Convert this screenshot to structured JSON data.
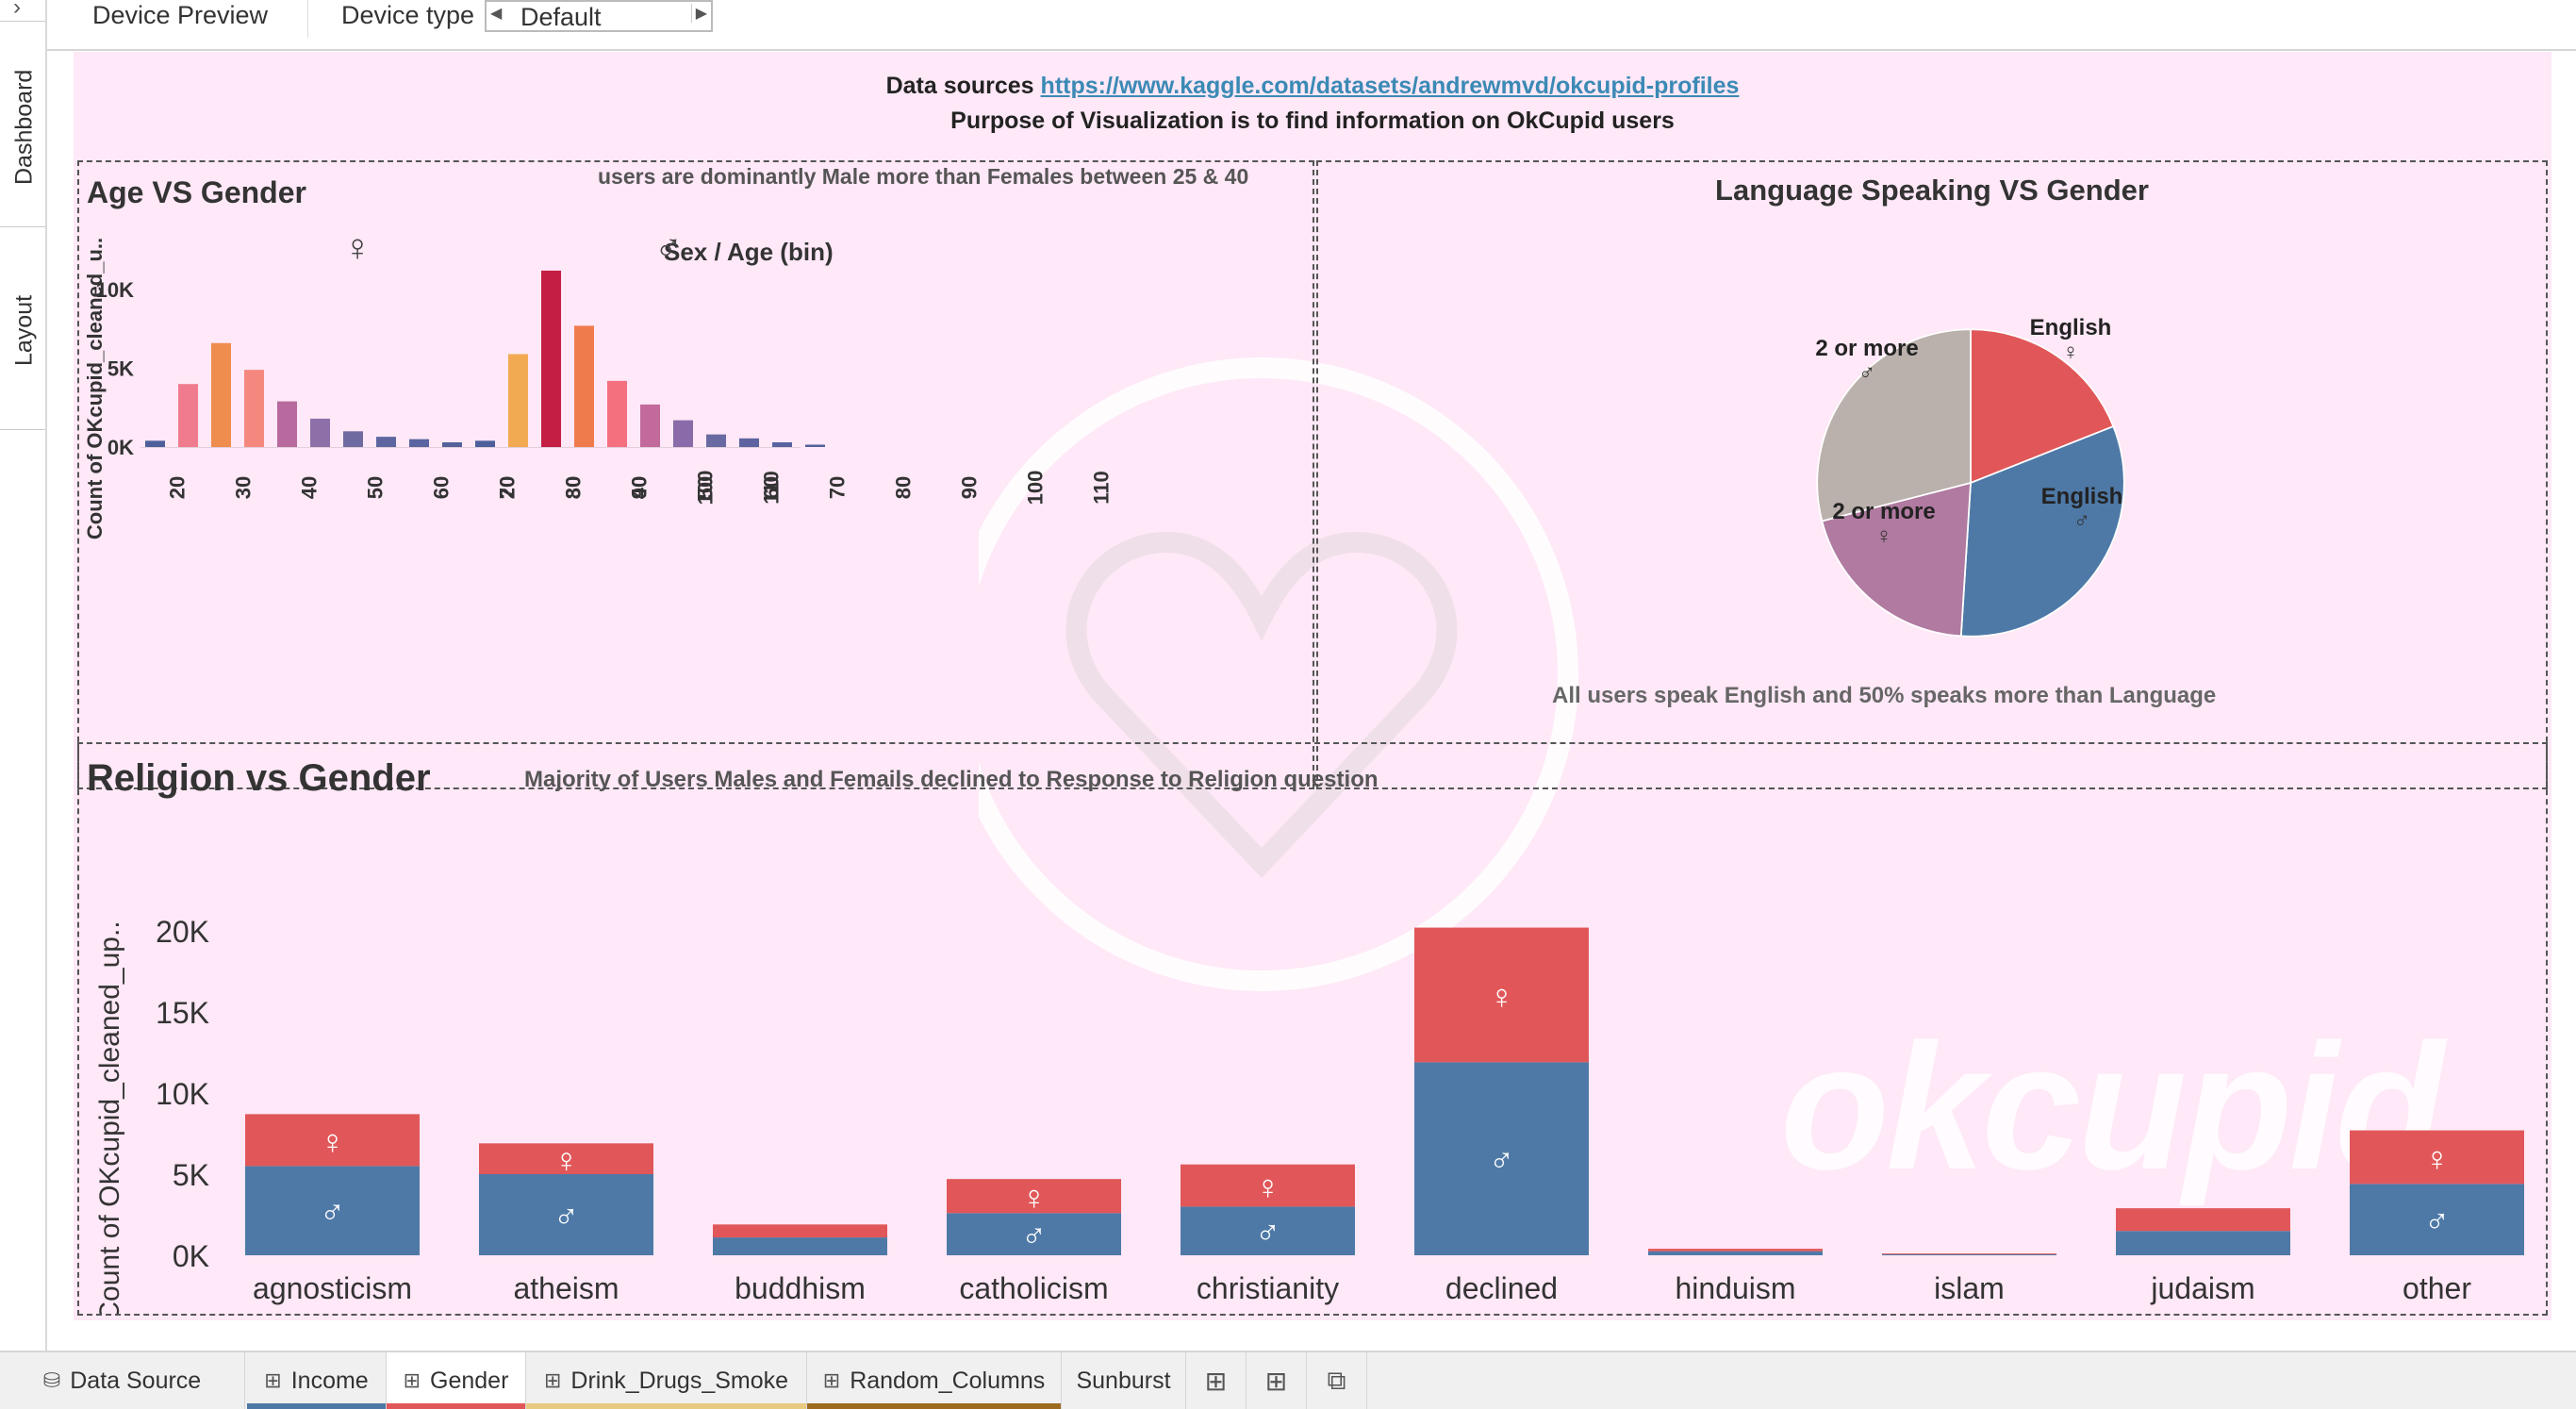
{
  "topbar": {
    "preview_tab": "Device Preview",
    "device_type_label": "Device type",
    "device_type_value": "Default"
  },
  "sidebar": {
    "tabs": [
      "Dashboard",
      "Layout"
    ]
  },
  "header": {
    "data_sources_label": "Data sources",
    "data_sources_link": "https://www.kaggle.com/datasets/andrewmvd/okcupid-profiles",
    "purpose_text": "Purpose of Visualization  is to find information on OkCupid users"
  },
  "age_chart": {
    "title": "Age VS Gender",
    "note": "users are dominantly Male more than Females between 25 & 40",
    "header": "Sex  /  Age (bin)",
    "ylabel": "Count of OKcupid_cleaned_u..",
    "female_symbol": "♀",
    "male_symbol": "♂"
  },
  "language_chart": {
    "title": "Language Speaking VS Gender",
    "note": "All users speak English and 50% speaks more than Language",
    "slice_labels": [
      {
        "name": "English",
        "symbol": "♀"
      },
      {
        "name": "English",
        "symbol": "♂"
      },
      {
        "name": "2 or more",
        "symbol": "♀"
      },
      {
        "name": "2 or more",
        "symbol": "♂"
      }
    ]
  },
  "religion_chart": {
    "title": "Religion vs Gender",
    "note": "Majority of Users Males and Femails declined to Response to Religion question",
    "ylabel": "Count of OKcupid_cleaned_up.."
  },
  "watermark": {
    "brand": "okcupid"
  },
  "chart_data": [
    {
      "type": "bar",
      "title": "Age VS Gender",
      "ylabel": "Count of OKcupid_cleaned_u..",
      "ylim": [
        0,
        12000
      ],
      "yticks": [
        0,
        5000,
        10000
      ],
      "ytick_labels": [
        "0K",
        "5K",
        "10K"
      ],
      "tick_labels": [
        "20",
        "30",
        "40",
        "50",
        "60",
        "70",
        "80",
        "90",
        "100",
        "110"
      ],
      "tick_values": [
        20,
        30,
        40,
        50,
        60,
        70,
        80,
        90,
        100,
        110
      ],
      "bin_width": 5,
      "panels": [
        {
          "name": "♀",
          "x": [
            15,
            20,
            25,
            30,
            35,
            40,
            45,
            50,
            55,
            60,
            65
          ],
          "values": [
            400,
            4000,
            6600,
            4900,
            2900,
            1800,
            1000,
            650,
            500,
            300,
            100
          ],
          "colors": [
            "#4e5f9c",
            "#f07b8e",
            "#ef8d4e",
            "#f5887e",
            "#b86a9e",
            "#8e6fa8",
            "#6f6a9f",
            "#5d66a0",
            "#5a64a0",
            "#556299",
            "#4f5f96"
          ]
        },
        {
          "name": "♂",
          "x": [
            15,
            20,
            25,
            30,
            35,
            40,
            45,
            50,
            55,
            60,
            65
          ],
          "values": [
            400,
            5900,
            11200,
            7700,
            4200,
            2700,
            1700,
            800,
            550,
            300,
            150
          ],
          "colors": [
            "#4e5f9c",
            "#f2aa52",
            "#c41e45",
            "#ef7b4d",
            "#f5707f",
            "#c26a9c",
            "#8a6aa8",
            "#6a6aa2",
            "#5e64a0",
            "#5962a0",
            "#545f9a"
          ]
        }
      ],
      "grid": false,
      "legend": "none"
    },
    {
      "type": "pie",
      "title": "Language Speaking VS Gender",
      "labels": [
        "English ♀",
        "English ♂",
        "2 or more ♀",
        "2 or more ♂"
      ],
      "values": [
        19,
        32,
        20,
        29
      ],
      "colors": [
        "#e15759",
        "#4e79a7",
        "#b07aa1",
        "#bab0ac"
      ]
    },
    {
      "type": "bar",
      "title": "Religion vs Gender",
      "ylabel": "Count of OKcupid_cleaned_up..",
      "categories": [
        "agnosticism",
        "atheism",
        "buddhism",
        "catholicism",
        "christianity",
        "declined",
        "hinduism",
        "islam",
        "judaism",
        "other"
      ],
      "series": [
        {
          "name": "♂",
          "values": [
            5500,
            5000,
            1100,
            2600,
            3000,
            11900,
            250,
            60,
            1500,
            4400
          ],
          "color": "#4e79a7"
        },
        {
          "name": "♀",
          "values": [
            3200,
            1900,
            800,
            2100,
            2600,
            8300,
            150,
            50,
            1400,
            3300
          ],
          "color": "#e15759"
        }
      ],
      "ylim": [
        0,
        20500
      ],
      "yticks": [
        0,
        5000,
        10000,
        15000,
        20000
      ],
      "ytick_labels": [
        "0K",
        "5K",
        "10K",
        "15K",
        "20K"
      ],
      "bar_symbols": [
        true,
        true,
        false,
        true,
        true,
        true,
        false,
        false,
        false,
        true
      ],
      "grid": false,
      "legend": "none"
    }
  ],
  "bottombar": {
    "tabs": [
      {
        "label": "Data Source",
        "icon": "database-icon",
        "color": ""
      },
      {
        "label": "Income",
        "icon": "grid-icon",
        "color": "#4e79a7"
      },
      {
        "label": "Gender",
        "icon": "grid-icon",
        "color": "#e15759"
      },
      {
        "label": "Drink_Drugs_Smoke",
        "icon": "grid-icon",
        "color": "#e8c980"
      },
      {
        "label": "Random_Columns",
        "icon": "grid-icon",
        "color": "#9c6b1e"
      },
      {
        "label": "Sunburst",
        "icon": "",
        "color": ""
      }
    ],
    "actions": [
      "new-worksheet-icon",
      "new-dashboard-icon",
      "new-story-icon"
    ]
  }
}
